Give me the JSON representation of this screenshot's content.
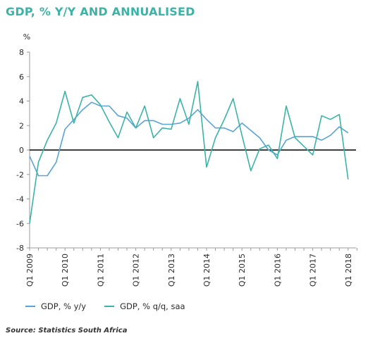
{
  "title": "GDP, % Y/Y AND ANNUALISED",
  "source": "Source: Statistics South Africa",
  "chart_data": {
    "type": "line",
    "title": "GDP, % Y/Y AND ANNUALISED",
    "unit_label": "%",
    "ylim": [
      -8,
      8
    ],
    "y_ticks": [
      -8,
      -6,
      -4,
      -2,
      0,
      2,
      4,
      6,
      8
    ],
    "x_tick_labels": [
      "Q1 2009",
      "Q1 2010",
      "Q1 2011",
      "Q1 2012",
      "Q1 2013",
      "Q1 2014",
      "Q1 2015",
      "Q1 2016",
      "Q1 2017",
      "Q1 2018"
    ],
    "x": [
      "Q1 2009",
      "Q2 2009",
      "Q3 2009",
      "Q4 2009",
      "Q1 2010",
      "Q2 2010",
      "Q3 2010",
      "Q4 2010",
      "Q1 2011",
      "Q2 2011",
      "Q3 2011",
      "Q4 2011",
      "Q1 2012",
      "Q2 2012",
      "Q3 2012",
      "Q4 2012",
      "Q1 2013",
      "Q2 2013",
      "Q3 2013",
      "Q4 2013",
      "Q1 2014",
      "Q2 2014",
      "Q3 2014",
      "Q4 2014",
      "Q1 2015",
      "Q2 2015",
      "Q3 2015",
      "Q4 2015",
      "Q1 2016",
      "Q2 2016",
      "Q3 2016",
      "Q4 2016",
      "Q1 2017",
      "Q2 2017",
      "Q3 2017",
      "Q4 2017",
      "Q1 2018",
      "Q2 2018"
    ],
    "zero_line": true,
    "grid": false,
    "legend_position": "bottom",
    "series": [
      {
        "name": "GDP, % y/y",
        "color": "#5aa3d6",
        "values": [
          -0.5,
          -2.1,
          -2.1,
          -1.0,
          1.7,
          2.5,
          3.3,
          3.9,
          3.6,
          3.6,
          2.8,
          2.6,
          1.8,
          2.4,
          2.4,
          2.1,
          2.1,
          2.2,
          2.6,
          3.3,
          2.5,
          1.8,
          1.8,
          1.5,
          2.2,
          1.6,
          1.0,
          0.0,
          -0.4,
          0.8,
          1.1,
          1.1,
          1.1,
          0.8,
          1.2,
          1.9,
          1.4,
          null
        ]
      },
      {
        "name": "GDP, % q/q, saa",
        "color": "#3bb3a7",
        "values": [
          -6.0,
          -1.0,
          0.8,
          2.2,
          4.8,
          2.2,
          4.3,
          4.5,
          3.7,
          2.3,
          1.0,
          3.1,
          1.8,
          3.6,
          1.0,
          1.8,
          1.7,
          4.2,
          2.1,
          5.6,
          -1.4,
          1.0,
          2.5,
          4.2,
          1.2,
          -1.7,
          0.1,
          0.4,
          -0.7,
          3.6,
          1.0,
          0.3,
          -0.4,
          2.8,
          2.5,
          2.9,
          -2.4,
          null
        ]
      }
    ]
  }
}
